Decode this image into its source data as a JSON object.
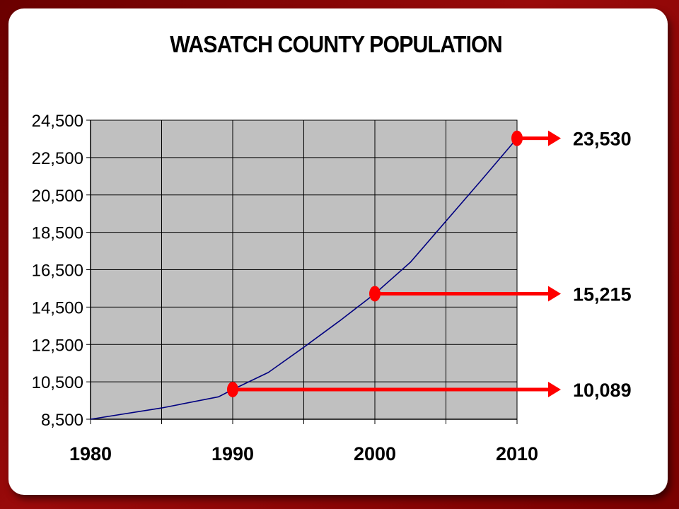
{
  "chart_data": {
    "type": "line",
    "title": "WASATCH COUNTY POPULATION",
    "xlabel": "",
    "ylabel": "",
    "x_ticks": [
      "1980",
      "1990",
      "2000",
      "2010"
    ],
    "y_ticks": [
      "8,500",
      "10,500",
      "12,500",
      "14,500",
      "16,500",
      "18,500",
      "20,500",
      "22,500",
      "24,500"
    ],
    "xlim": [
      1980,
      2010
    ],
    "ylim": [
      8500,
      24500
    ],
    "grid": true,
    "legend": "none",
    "series": [
      {
        "color": "#000080",
        "x": [
          1980,
          1985,
          1989,
          1990,
          1992.5,
          1995,
          1997.5,
          2000,
          2002.5,
          2005,
          2007.5,
          2010
        ],
        "y": [
          8500,
          9100,
          9700,
          10089,
          11000,
          12350,
          13750,
          15215,
          16900,
          19100,
          21300,
          23530
        ]
      }
    ],
    "callouts": [
      {
        "x": 1990,
        "value": 10089,
        "label": "10,089"
      },
      {
        "x": 2000,
        "value": 15215,
        "label": "15,215"
      },
      {
        "x": 2010,
        "value": 23530,
        "label": "23,530"
      }
    ],
    "colors": {
      "plot_background": "#c0c0c0",
      "line": "#000080",
      "callout": "#ff0000",
      "frame": "#8b0000"
    }
  }
}
